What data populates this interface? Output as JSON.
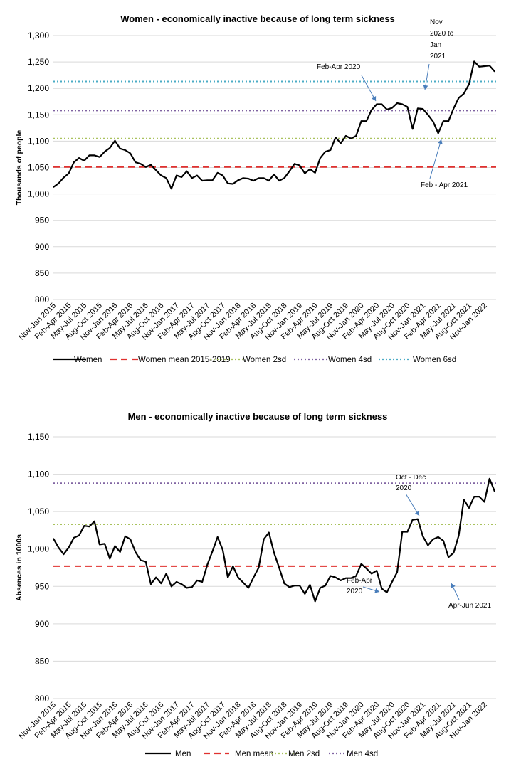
{
  "chart_data": [
    {
      "type": "line",
      "title": "Women - economically inactive because of long term sickness",
      "ylabel": "Thousands of people",
      "xlabel": "",
      "ylim": [
        800,
        1300
      ],
      "yticks": [
        800,
        850,
        900,
        950,
        1000,
        1050,
        1100,
        1150,
        1200,
        1250,
        1300
      ],
      "ytick_labels": [
        "800",
        "850",
        "900",
        "950",
        "1,000",
        "1,050",
        "1,100",
        "1,150",
        "1,200",
        "1,250",
        "1,300"
      ],
      "grid": true,
      "legend_position": "bottom",
      "x_tick_labels": [
        "Nov-Jan 2015",
        "Feb-Apr 2015",
        "May-Jul 2015",
        "Aug-Oct 2015",
        "Nov-Jan 2016",
        "Feb-Apr 2016",
        "May-Jul 2016",
        "Aug-Oct 2016",
        "Nov-Jan 2017",
        "Feb-Apr 2017",
        "May-Jul 2017",
        "Aug-Oct 2017",
        "Nov-Jan 2018",
        "Feb-Apr 2018",
        "May-Jul 2018",
        "Aug-Oct 2018",
        "Nov-Jan 2019",
        "Feb-Apr 2019",
        "May-Jul 2019",
        "Aug-Oct 2019",
        "Nov-Jan 2020",
        "Feb-Apr 2020",
        "May-Jul 2020",
        "Aug-Oct 2020",
        "Nov-Jan 2021",
        "Feb-Apr 2021",
        "May-Jul 2021",
        "Aug-Oct 2021",
        "Nov-Jan 2022"
      ],
      "series": [
        {
          "name": "Women",
          "style": "solid",
          "color": "#000000",
          "values": [
            1013,
            1020,
            1031,
            1039,
            1060,
            1068,
            1063,
            1073,
            1073,
            1070,
            1080,
            1087,
            1101,
            1086,
            1083,
            1077,
            1060,
            1057,
            1051,
            1055,
            1045,
            1035,
            1030,
            1010,
            1035,
            1032,
            1043,
            1030,
            1035,
            1025,
            1026,
            1026,
            1040,
            1035,
            1020,
            1019,
            1026,
            1030,
            1029,
            1025,
            1030,
            1030,
            1025,
            1037,
            1025,
            1030,
            1043,
            1057,
            1054,
            1039,
            1047,
            1040,
            1068,
            1080,
            1083,
            1107,
            1096,
            1110,
            1105,
            1110,
            1138,
            1138,
            1159,
            1170,
            1170,
            1160,
            1163,
            1172,
            1170,
            1165,
            1123,
            1162,
            1161,
            1150,
            1137,
            1115,
            1138,
            1138,
            1162,
            1182,
            1190,
            1208,
            1251,
            1241,
            1242,
            1243,
            1232
          ]
        },
        {
          "name": "Women mean 2015-2019",
          "style": "dashed",
          "color": "#e0312f",
          "constant": 1051
        },
        {
          "name": "Women 2sd",
          "style": "dotted",
          "color": "#a9c25d",
          "constant": 1105
        },
        {
          "name": "Women 4sd",
          "style": "dotted",
          "color": "#8064a2",
          "constant": 1158
        },
        {
          "name": "Women 6sd",
          "style": "dotted",
          "color": "#4bacc6",
          "constant": 1213
        }
      ],
      "annotations": [
        {
          "lines": [
            "Feb-Apr 2020"
          ]
        },
        {
          "lines": [
            "Nov",
            "2020 to",
            "Jan",
            "2021"
          ]
        },
        {
          "lines": [
            "Feb - Apr 2021"
          ]
        }
      ]
    },
    {
      "type": "line",
      "title": "Men - economically inactive because of long term sickness",
      "ylabel": "Absences in 1000s",
      "xlabel": "",
      "ylim": [
        800,
        1150
      ],
      "yticks": [
        800,
        850,
        900,
        950,
        1000,
        1050,
        1100,
        1150
      ],
      "ytick_labels": [
        "800",
        "850",
        "900",
        "950",
        "1,000",
        "1,050",
        "1,100",
        "1,150"
      ],
      "grid": true,
      "legend_position": "bottom",
      "x_tick_labels": [
        "Nov-Jan 2015",
        "Feb-Apr 2015",
        "May-Jul 2015",
        "Aug-Oct 2015",
        "Nov-Jan 2016",
        "Feb-Apr 2016",
        "May-Jul 2016",
        "Aug-Oct 2016",
        "Nov-Jan 2017",
        "Feb-Apr 2017",
        "May-Jul 2017",
        "Aug-Oct 2017",
        "Nov-Jan 2018",
        "Feb-Apr 2018",
        "May-Jul 2018",
        "Aug-Oct 2018",
        "Nov-Jan 2019",
        "Feb-Apr 2019",
        "May-Jul 2019",
        "Aug-Oct 2019",
        "Nov-Jan 2020",
        "Feb-Apr 2020",
        "May-Jul 2020",
        "Aug-Oct 2020",
        "Nov-Jan 2021",
        "Feb-Apr 2021",
        "May-Jul 2021",
        "Aug-Oct 2021",
        "Nov-Jan 2022"
      ],
      "series": [
        {
          "name": "Men",
          "style": "solid",
          "color": "#000000",
          "values": [
            1014,
            1002,
            993,
            1002,
            1015,
            1018,
            1031,
            1030,
            1037,
            1006,
            1007,
            987,
            1004,
            996,
            1017,
            1013,
            996,
            985,
            983,
            953,
            962,
            954,
            967,
            950,
            956,
            953,
            948,
            949,
            958,
            956,
            979,
            997,
            1016,
            999,
            962,
            977,
            962,
            955,
            948,
            962,
            975,
            1013,
            1022,
            995,
            975,
            954,
            949,
            951,
            951,
            940,
            952,
            930,
            948,
            951,
            964,
            962,
            958,
            961,
            961,
            964,
            980,
            974,
            967,
            971,
            947,
            942,
            956,
            969,
            1023,
            1023,
            1039,
            1040,
            1017,
            1005,
            1013,
            1016,
            1011,
            989,
            995,
            1018,
            1066,
            1055,
            1070,
            1070,
            1063,
            1094,
            1077
          ]
        },
        {
          "name": "Men mean",
          "style": "dashed",
          "color": "#e0312f",
          "constant": 977
        },
        {
          "name": "Men 2sd",
          "style": "dotted",
          "color": "#a9c25d",
          "constant": 1033
        },
        {
          "name": "Men 4sd",
          "style": "dotted",
          "color": "#8064a2",
          "constant": 1088
        }
      ],
      "annotations": [
        {
          "lines": [
            "Oct - Dec",
            "2020"
          ]
        },
        {
          "lines": [
            "Feb-Apr",
            "2020"
          ]
        },
        {
          "lines": [
            "Apr-Jun 2021"
          ]
        }
      ]
    }
  ]
}
